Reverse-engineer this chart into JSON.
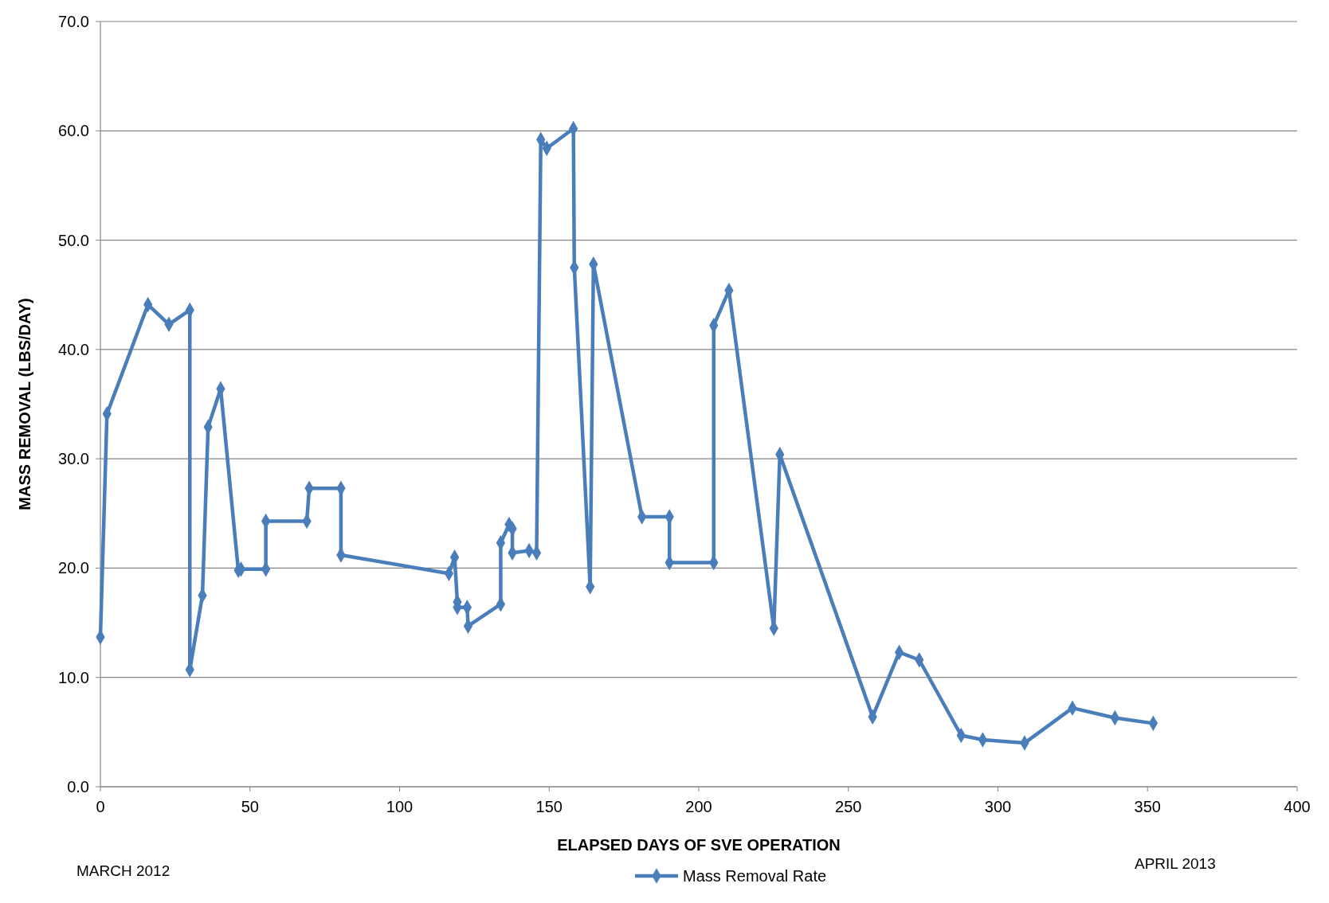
{
  "chart_data": {
    "type": "line",
    "xlabel": "ELAPSED DAYS OF SVE OPERATION",
    "ylabel": "MASS REMOVAL (LBS/DAY)",
    "xlim": [
      0,
      400
    ],
    "xticks": [
      0,
      50,
      100,
      150,
      200,
      250,
      300,
      350,
      400
    ],
    "ylim": [
      0,
      70
    ],
    "yticks": [
      {
        "value": 0,
        "label": "0.0"
      },
      {
        "value": 10,
        "label": "10.0"
      },
      {
        "value": 20,
        "label": "20.0"
      },
      {
        "value": 30,
        "label": "30.0"
      },
      {
        "value": 40,
        "label": "40.0"
      },
      {
        "value": 50,
        "label": "50.0"
      },
      {
        "value": 60,
        "label": "60.0"
      },
      {
        "value": 70,
        "label": "70.0"
      }
    ],
    "grid": "y",
    "legend": "bottom",
    "marker": "diamond",
    "line_style": "solid",
    "annotations": [
      "MARCH 2012",
      "APRIL 2013"
    ],
    "series": [
      {
        "name": "Mass Removal Rate",
        "color": "#4a7ebb",
        "x": [
          0,
          2.2,
          15.9,
          22.9,
          29.9,
          29.9,
          34.1,
          36.0,
          40.2,
          46.1,
          47,
          55.3,
          55.3,
          69.0,
          69.8,
          80.4,
          80.4,
          116.5,
          118.4,
          119.3,
          119.3,
          122.6,
          122.9,
          133.8,
          133.8,
          136.6,
          137.7,
          137.7,
          143.3,
          145.8,
          147.2,
          149.2,
          158.1,
          158.4,
          163.7,
          164.8,
          181.0,
          190.2,
          190.2,
          205.0,
          205.0,
          210.1,
          225.1,
          227.1,
          258.1,
          267.0,
          273.7,
          287.7,
          294.9,
          308.9,
          324.9,
          339.1,
          351.9
        ],
        "values": [
          13.7,
          34.1,
          44.1,
          42.3,
          43.6,
          10.7,
          17.5,
          32.9,
          36.4,
          19.8,
          19.9,
          19.9,
          24.3,
          24.3,
          27.3,
          27.3,
          21.2,
          19.5,
          21.0,
          16.9,
          16.4,
          16.4,
          14.7,
          16.7,
          22.3,
          24.0,
          23.6,
          21.4,
          21.6,
          21.4,
          59.2,
          58.4,
          60.2,
          47.5,
          18.3,
          47.8,
          24.7,
          24.7,
          20.5,
          20.5,
          42.2,
          45.4,
          14.5,
          30.4,
          6.4,
          12.3,
          11.6,
          4.7,
          4.3,
          4.0,
          7.2,
          6.3,
          5.8
        ]
      }
    ]
  }
}
